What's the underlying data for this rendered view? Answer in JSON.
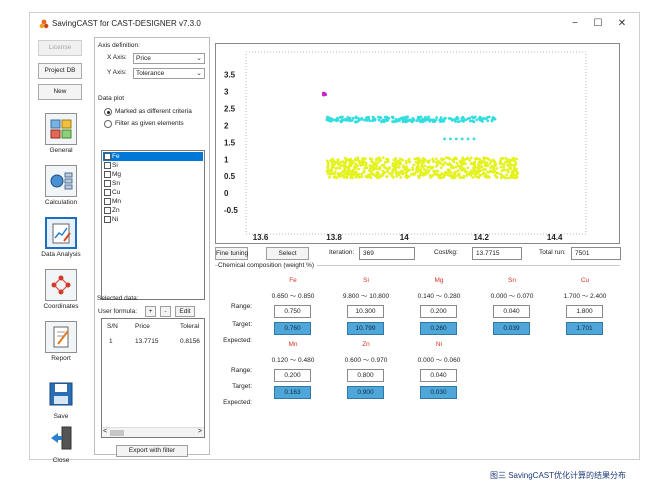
{
  "window": {
    "title": "SavingCAST for CAST-DESIGNER v7.3.0",
    "minimize": "−",
    "maximize": "☐",
    "close": "✕"
  },
  "toolbar": {
    "license": "License",
    "project_db": "Project DB",
    "new": "New"
  },
  "nav": [
    {
      "label": "General",
      "icon": "general-icon"
    },
    {
      "label": "Calculation",
      "icon": "calculation-icon"
    },
    {
      "label": "Data Analysis",
      "icon": "data-analysis-icon",
      "active": true
    },
    {
      "label": "Coordinates",
      "icon": "coordinates-icon"
    },
    {
      "label": "Report",
      "icon": "report-icon"
    },
    {
      "label": "Save",
      "icon": "save-icon"
    },
    {
      "label": "Close",
      "icon": "close-door-icon"
    }
  ],
  "settings": {
    "axis_definition": "Axis definition:",
    "x_axis_label": "X Axis:",
    "x_axis_value": "Price",
    "y_axis_label": "Y Axis:",
    "y_axis_value": "Tolerance",
    "data_plot": "Data plot",
    "radio_marked": "Marked as different criteria",
    "radio_filter": "Filter as given elements",
    "elements": [
      "Fe",
      "Si",
      "Mg",
      "Sn",
      "Cu",
      "Mn",
      "Zn",
      "Ni"
    ],
    "user_formula": "User formula:",
    "plus": "+",
    "minus": "-",
    "edit": "Edit",
    "selected_data": "Selected data:",
    "table_headers": [
      "S/N",
      "Price",
      "Toleral"
    ],
    "table_row": [
      "1",
      "13.7715",
      "0.8156"
    ],
    "scroll_left": "<",
    "scroll_right": ">",
    "export": "Export with filter"
  },
  "chart_data": {
    "type": "scatter",
    "x_ticks": [
      "13.6",
      "13.8",
      "14",
      "14.2",
      "14.4"
    ],
    "y_ticks": [
      "3.5",
      "3",
      "2.5",
      "2",
      "1.5",
      "1",
      "0.5",
      "0",
      "-0.5"
    ],
    "xlim": [
      13.56,
      14.52
    ],
    "ylim": [
      -0.85,
      3.75
    ],
    "grid": false,
    "series": [
      {
        "color": "#cc22cc",
        "x_range": [
          13.77,
          13.78
        ],
        "y_range": [
          2.88,
          2.95
        ]
      },
      {
        "color": "#33dde0",
        "x_range": [
          13.78,
          14.25
        ],
        "y_range": [
          2.1,
          2.25
        ]
      },
      {
        "color": "#33dde0",
        "x_range": [
          14.1,
          14.18
        ],
        "y_range": [
          1.58,
          1.62
        ]
      },
      {
        "color": "#e4f21e",
        "x_range": [
          13.78,
          14.3
        ],
        "y_range": [
          0.45,
          1.05
        ]
      }
    ]
  },
  "controls": {
    "fine_tuning": "Fine tuning",
    "select": "Select",
    "iteration_label": "Iteration:",
    "iteration_value": "369",
    "cost_label": "Cost/kg:",
    "cost_value": "13.7715",
    "total_label": "Total run:",
    "total_value": "7501",
    "composition_title": "Chemical composition (weight %)"
  },
  "composition": {
    "row_labels": {
      "range": "Range:",
      "target": "Target:",
      "expected": "Expected:"
    },
    "row1": [
      {
        "el": "Fe",
        "range": "0.650 ～ 0.850",
        "target": "0.750",
        "expected": "0.760"
      },
      {
        "el": "Si",
        "range": "9.800 ～ 10.800",
        "target": "10.300",
        "expected": "10.799"
      },
      {
        "el": "Mg",
        "range": "0.140 ～ 0.280",
        "target": "0.200",
        "expected": "0.260"
      },
      {
        "el": "Sn",
        "range": "0.000 ～ 0.070",
        "target": "0.040",
        "expected": "0.039"
      },
      {
        "el": "Cu",
        "range": "1.700 ～ 2.400",
        "target": "1.800",
        "expected": "1.701"
      }
    ],
    "row2": [
      {
        "el": "Mn",
        "range": "0.120 ～ 0.480",
        "target": "0.200",
        "expected": "0.163"
      },
      {
        "el": "Zn",
        "range": "0.600 ～ 0.970",
        "target": "0.800",
        "expected": "0.900"
      },
      {
        "el": "Ni",
        "range": "0.000 ～ 0.060",
        "target": "0.040",
        "expected": "0.030"
      }
    ]
  },
  "caption": "图三 SavingCAST优化计算的结果分布"
}
